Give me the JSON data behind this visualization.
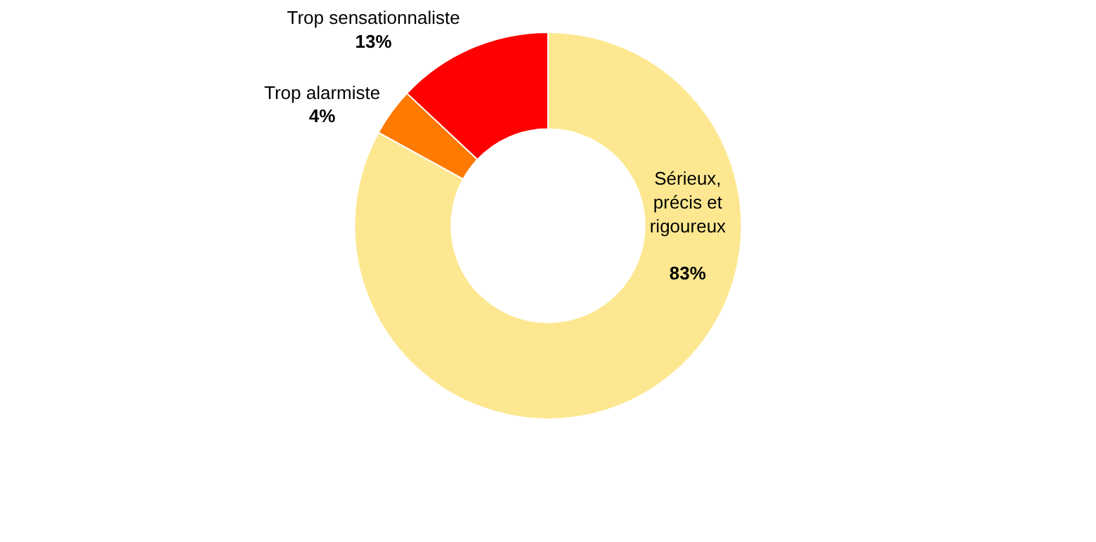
{
  "chart_data": {
    "type": "donut",
    "categories": [
      "Sérieux, précis et rigoureux",
      "Trop alarmiste",
      "Trop sensationnaliste"
    ],
    "values": [
      83,
      4,
      13
    ],
    "colors": [
      "#fde891",
      "#ff7a00",
      "#fe0000"
    ],
    "value_labels": [
      "83%",
      "4%",
      "13%"
    ],
    "legend": false
  }
}
